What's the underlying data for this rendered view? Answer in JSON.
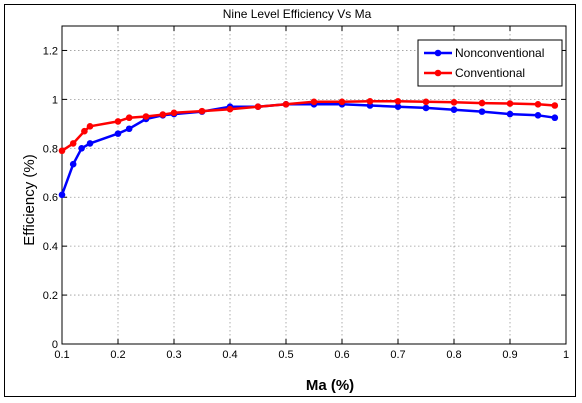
{
  "chart_data": {
    "type": "line",
    "title": "Nine Level Efficiency Vs Ma",
    "xlabel": "Ma (%)",
    "ylabel": "Efficiency (%)",
    "xlim": [
      0.1,
      1
    ],
    "ylim": [
      0,
      1.3
    ],
    "xticks": [
      "0.1",
      "0.2",
      "0.3",
      "0.4",
      "0.5",
      "0.6",
      "0.7",
      "0.8",
      "0.9",
      "1"
    ],
    "yticks": [
      "0",
      "0.2",
      "0.4",
      "0.6",
      "0.8",
      "1",
      "1.2"
    ],
    "grid": true,
    "legend_position": "top-right",
    "series": [
      {
        "name": "Nonconventional",
        "color": "#0000ff",
        "x": [
          0.1,
          0.12,
          0.135,
          0.15,
          0.2,
          0.22,
          0.25,
          0.28,
          0.3,
          0.35,
          0.4,
          0.45,
          0.5,
          0.55,
          0.6,
          0.65,
          0.7,
          0.75,
          0.8,
          0.85,
          0.9,
          0.95,
          0.98
        ],
        "y": [
          0.61,
          0.735,
          0.8,
          0.82,
          0.86,
          0.88,
          0.92,
          0.935,
          0.94,
          0.95,
          0.97,
          0.97,
          0.98,
          0.98,
          0.98,
          0.975,
          0.97,
          0.965,
          0.958,
          0.95,
          0.94,
          0.935,
          0.925
        ]
      },
      {
        "name": "Conventional",
        "color": "#ff0000",
        "x": [
          0.1,
          0.12,
          0.14,
          0.15,
          0.2,
          0.22,
          0.25,
          0.28,
          0.3,
          0.35,
          0.4,
          0.45,
          0.5,
          0.55,
          0.6,
          0.65,
          0.7,
          0.75,
          0.8,
          0.85,
          0.9,
          0.95,
          0.98
        ],
        "y": [
          0.79,
          0.82,
          0.87,
          0.89,
          0.91,
          0.925,
          0.93,
          0.938,
          0.945,
          0.952,
          0.96,
          0.97,
          0.98,
          0.99,
          0.99,
          0.992,
          0.992,
          0.99,
          0.988,
          0.985,
          0.983,
          0.98,
          0.975
        ]
      }
    ]
  }
}
